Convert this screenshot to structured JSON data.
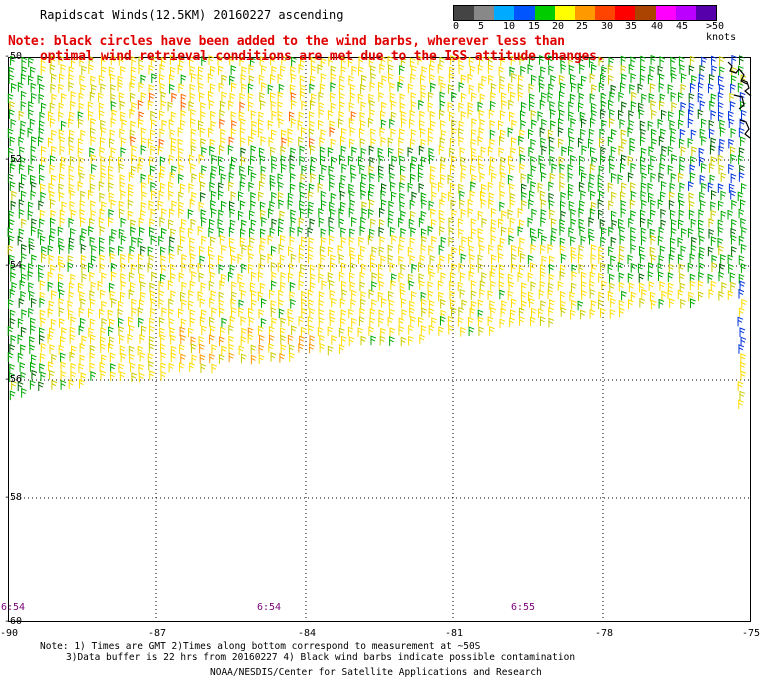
{
  "title": "Rapidscat Winds(12.5KM) 20160227 ascending",
  "note_line1": "Note: black circles have been added to the wind barbs, wherever less than",
  "note_line2": "optimal wind retrieval conditions are met due to the ISS attitude changes.",
  "legend": {
    "labels": [
      "0",
      "5",
      "10",
      "15",
      "20",
      "25",
      "30",
      "35",
      "40",
      "45",
      ">50 knots"
    ],
    "colors": [
      "#444444",
      "#888888",
      "#00aaff",
      "#0055ff",
      "#00cc00",
      "#ffff00",
      "#ff9900",
      "#ff4400",
      "#ff0000",
      "#aa4400",
      "#ff00ff",
      "#bb00ff",
      "#5500aa"
    ]
  },
  "lat_labels": [
    "-50",
    "-52",
    "-54",
    "-56",
    "-58",
    "-60"
  ],
  "lon_labels": [
    "-90",
    "-87",
    "-84",
    "-81",
    "-78",
    "-75"
  ],
  "times": [
    "6:54",
    "6:54",
    "6:55"
  ],
  "footer": {
    "line1": "Note: 1) Times are GMT 2)Times along bottom correspond to measurement at ~50S",
    "line2": "3)Data buffer is 22 hrs from 20160227 4) Black wind barbs indicate possible contamination",
    "line3": "NOAA/NESDIS/Center for Satellite Applications and Research"
  }
}
